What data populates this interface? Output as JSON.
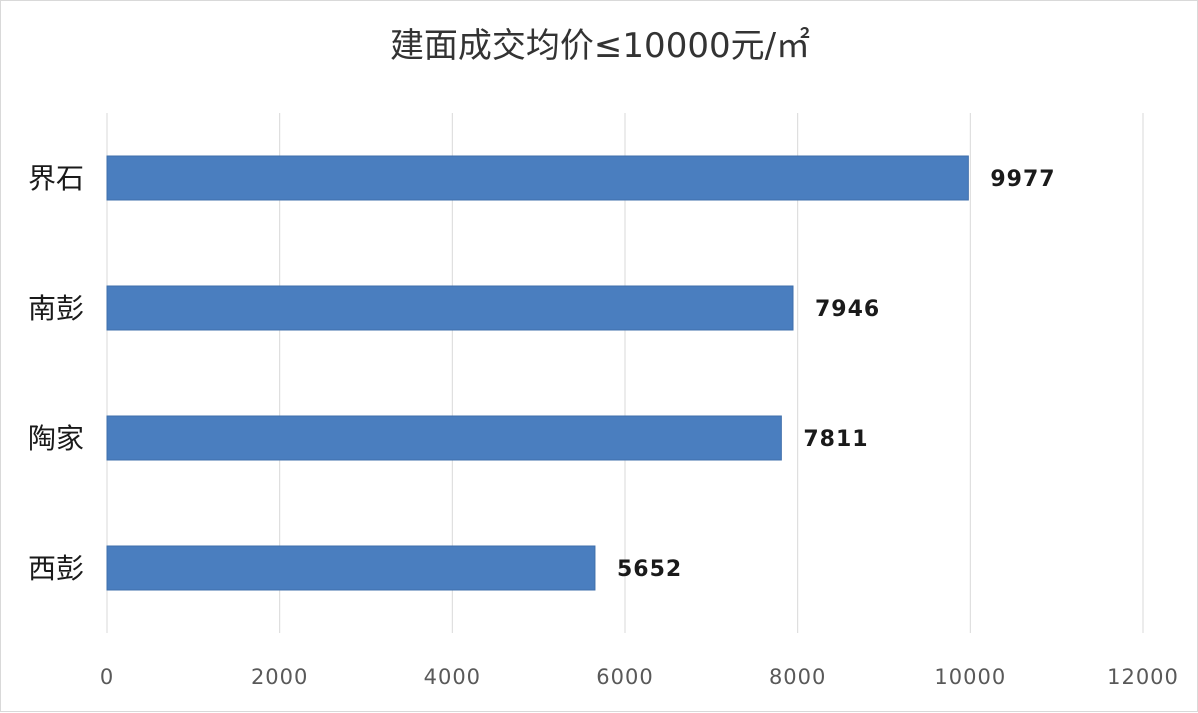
{
  "chart_data": {
    "type": "bar",
    "orientation": "horizontal",
    "title": "建面成交均价≤10000元/㎡",
    "categories": [
      "界石",
      "南彭",
      "陶家",
      "西彭"
    ],
    "values": [
      9977,
      7946,
      7811,
      5652
    ],
    "xlim": [
      0,
      12000
    ],
    "xticks": [
      0,
      2000,
      4000,
      6000,
      8000,
      10000,
      12000
    ],
    "grid": true,
    "legend": "none",
    "bar_color": "#4a7ebf"
  }
}
